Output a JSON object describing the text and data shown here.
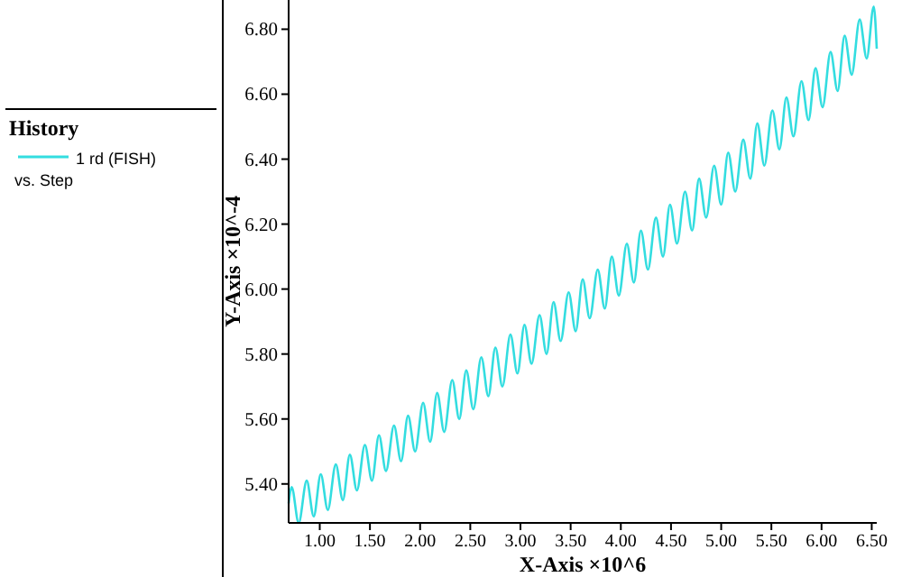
{
  "chart_data": {
    "type": "line",
    "xlabel": "X-Axis ×10^6",
    "ylabel": "Y-Axis ×10^-4",
    "legend_title": "History",
    "annotations": [
      "vs. Step"
    ],
    "legend": "left",
    "marker": "none",
    "line_style": "solid",
    "xlim": [
      0.69,
      6.55
    ],
    "ylim": [
      5.28,
      6.89
    ],
    "xticks": [
      {
        "value": 1,
        "label": "1.00"
      },
      {
        "value": 1.5,
        "label": "1.50"
      },
      {
        "value": 2,
        "label": "2.00"
      },
      {
        "value": 2.5,
        "label": "2.50"
      },
      {
        "value": 3,
        "label": "3.00"
      },
      {
        "value": 3.5,
        "label": "3.50"
      },
      {
        "value": 4,
        "label": "4.00"
      },
      {
        "value": 4.5,
        "label": "4.50"
      },
      {
        "value": 5,
        "label": "5.00"
      },
      {
        "value": 5.5,
        "label": "5.50"
      },
      {
        "value": 6,
        "label": "6.00"
      },
      {
        "value": 6.5,
        "label": "6.50"
      }
    ],
    "yticks": [
      {
        "value": 5.4,
        "label": "5.40"
      },
      {
        "value": 5.6,
        "label": "5.60"
      },
      {
        "value": 5.8,
        "label": "5.80"
      },
      {
        "value": 6,
        "label": "6.00"
      },
      {
        "value": 6.2,
        "label": "6.20"
      },
      {
        "value": 6.4,
        "label": "6.40"
      },
      {
        "value": 6.6,
        "label": "6.60"
      },
      {
        "value": 6.8,
        "label": "6.80"
      }
    ],
    "series": [
      {
        "name": "1 rd (FISH)",
        "color": "#33dde0",
        "x": [
          0.69,
          0.72,
          0.79,
          0.87,
          0.94,
          1.01,
          1.08,
          1.16,
          1.23,
          1.3,
          1.37,
          1.45,
          1.52,
          1.59,
          1.66,
          1.74,
          1.81,
          1.88,
          1.95,
          2.03,
          2.1,
          2.17,
          2.24,
          2.32,
          2.39,
          2.46,
          2.53,
          2.61,
          2.68,
          2.75,
          2.82,
          2.9,
          2.97,
          3.04,
          3.11,
          3.19,
          3.26,
          3.33,
          3.4,
          3.48,
          3.55,
          3.62,
          3.69,
          3.77,
          3.84,
          3.91,
          3.98,
          4.06,
          4.13,
          4.2,
          4.27,
          4.35,
          4.42,
          4.49,
          4.56,
          4.64,
          4.71,
          4.78,
          4.85,
          4.93,
          5.0,
          5.07,
          5.14,
          5.22,
          5.29,
          5.36,
          5.43,
          5.51,
          5.58,
          5.65,
          5.72,
          5.8,
          5.87,
          5.94,
          6.01,
          6.09,
          6.16,
          6.23,
          6.3,
          6.38,
          6.45,
          6.52,
          6.55
        ],
        "values": [
          5.34,
          5.39,
          5.28,
          5.41,
          5.3,
          5.43,
          5.32,
          5.46,
          5.35,
          5.49,
          5.38,
          5.52,
          5.41,
          5.55,
          5.44,
          5.58,
          5.47,
          5.61,
          5.5,
          5.65,
          5.53,
          5.68,
          5.56,
          5.72,
          5.6,
          5.75,
          5.63,
          5.79,
          5.67,
          5.82,
          5.7,
          5.86,
          5.74,
          5.89,
          5.77,
          5.92,
          5.8,
          5.96,
          5.84,
          5.99,
          5.87,
          6.03,
          5.91,
          6.06,
          5.94,
          6.1,
          5.98,
          6.14,
          6.02,
          6.18,
          6.06,
          6.22,
          6.1,
          6.26,
          6.14,
          6.3,
          6.18,
          6.34,
          6.22,
          6.38,
          6.26,
          6.42,
          6.3,
          6.46,
          6.34,
          6.51,
          6.38,
          6.55,
          6.43,
          6.59,
          6.47,
          6.64,
          6.52,
          6.68,
          6.56,
          6.73,
          6.61,
          6.78,
          6.66,
          6.83,
          6.71,
          6.87,
          6.74
        ]
      }
    ]
  }
}
